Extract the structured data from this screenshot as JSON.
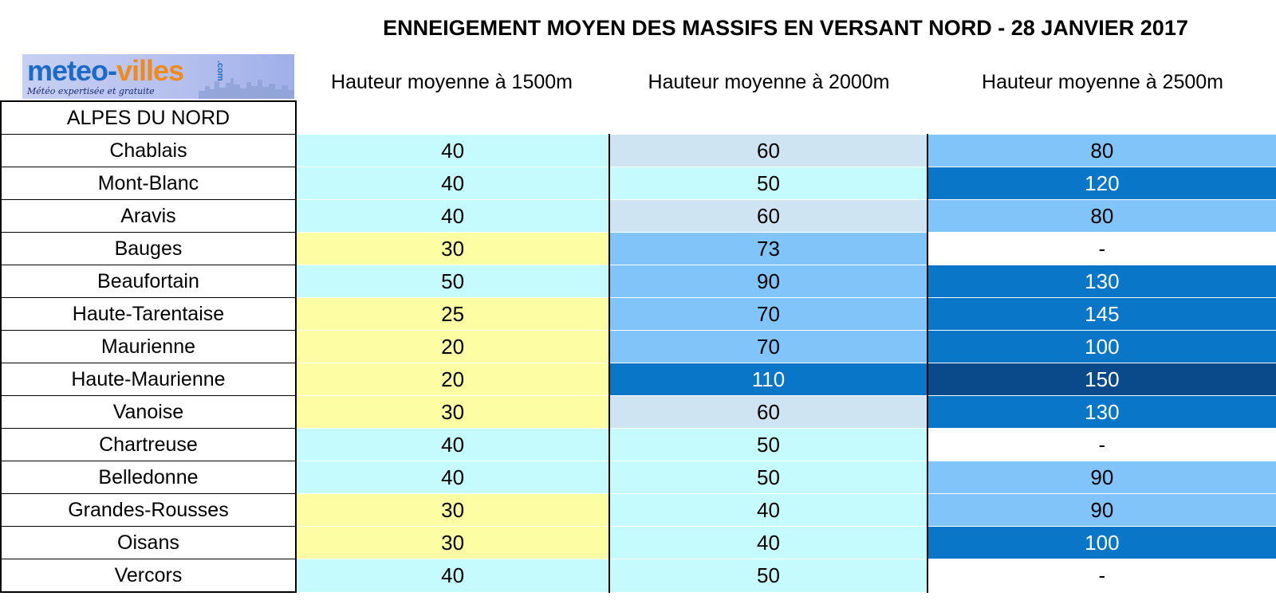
{
  "title": "ENNEIGEMENT MOYEN DES MASSIFS EN VERSANT NORD - 28 JANVIER 2017",
  "logo": {
    "brand_part1": "meteo-",
    "brand_part2": "villes",
    "suffix": ".com",
    "tagline": "Météo expertisée et gratuite"
  },
  "colors": {
    "yellow": "#fdfda3",
    "cyan": "#c5fbfc",
    "pale_blue": "#cfe4f3",
    "light_blue": "#81c4f9",
    "mid_blue": "#0a76c7",
    "dark_blue": "#0a4a8a",
    "white": "#ffffff"
  },
  "chart_data": {
    "type": "table",
    "title": "ENNEIGEMENT MOYEN DES MASSIFS EN VERSANT NORD - 28 JANVIER 2017",
    "region_label": "ALPES DU NORD",
    "columns": [
      "Hauteur moyenne à 1500m",
      "Hauteur moyenne à 2000m",
      "Hauteur moyenne à 2500m"
    ],
    "rows": [
      {
        "name": "Chablais",
        "values": [
          "40",
          "60",
          "80"
        ]
      },
      {
        "name": "Mont-Blanc",
        "values": [
          "40",
          "50",
          "120"
        ]
      },
      {
        "name": "Aravis",
        "values": [
          "40",
          "60",
          "80"
        ]
      },
      {
        "name": "Bauges",
        "values": [
          "30",
          "73",
          "-"
        ]
      },
      {
        "name": "Beaufortain",
        "values": [
          "50",
          "90",
          "130"
        ]
      },
      {
        "name": "Haute-Tarentaise",
        "values": [
          "25",
          "70",
          "145"
        ]
      },
      {
        "name": "Maurienne",
        "values": [
          "20",
          "70",
          "100"
        ]
      },
      {
        "name": "Haute-Maurienne",
        "values": [
          "20",
          "110",
          "150"
        ]
      },
      {
        "name": "Vanoise",
        "values": [
          "30",
          "60",
          "130"
        ]
      },
      {
        "name": "Chartreuse",
        "values": [
          "40",
          "50",
          "-"
        ]
      },
      {
        "name": "Belledonne",
        "values": [
          "40",
          "50",
          "90"
        ]
      },
      {
        "name": "Grandes-Rousses",
        "values": [
          "30",
          "40",
          "90"
        ]
      },
      {
        "name": "Oisans",
        "values": [
          "30",
          "40",
          "100"
        ]
      },
      {
        "name": "Vercors",
        "values": [
          "40",
          "50",
          "-"
        ]
      }
    ]
  }
}
